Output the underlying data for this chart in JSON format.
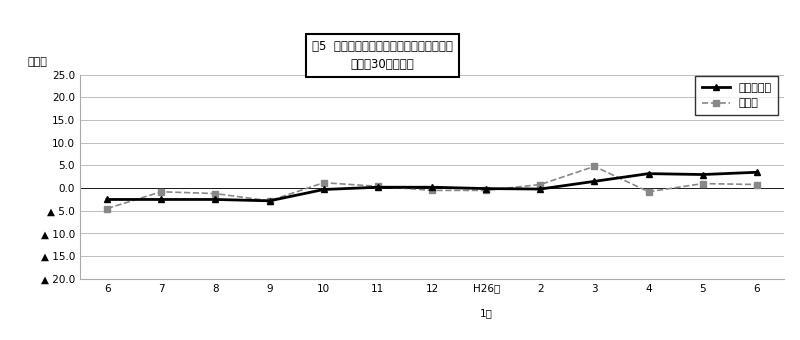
{
  "title_line1": "図5  常用労働者数の推移（対前年同月比）",
  "title_line2": "－規模30人以上－",
  "ylabel": "（％）",
  "series1_name": "調査産業計",
  "series2_name": "製造業",
  "x_positions": [
    0,
    1,
    2,
    3,
    4,
    5,
    6,
    7,
    8,
    9,
    10,
    11,
    12
  ],
  "x_tick_labels": [
    "6",
    "7",
    "8",
    "9",
    "10",
    "11",
    "12",
    "H26年",
    "2",
    "3",
    "4",
    "5",
    "6"
  ],
  "x_label_month": "1月",
  "ylim_min": -20.0,
  "ylim_max": 25.0,
  "ytick_vals": [
    25.0,
    20.0,
    15.0,
    10.0,
    5.0,
    0.0,
    -5.0,
    -10.0,
    -15.0,
    -20.0
  ],
  "ytick_labels": [
    "25.0",
    "20.0",
    "15.0",
    "10.0",
    "5.0",
    "0.0",
    "▲ 5.0",
    "▲ 10.0",
    "▲ 15.0",
    "▲ 20.0"
  ],
  "series1_values": [
    -2.5,
    -2.5,
    -2.5,
    -2.8,
    -0.3,
    0.2,
    0.2,
    -0.1,
    -0.2,
    1.5,
    3.2,
    3.0,
    3.5
  ],
  "series1_color": "#000000",
  "series2_values": [
    -4.5,
    -0.8,
    -1.2,
    -2.8,
    1.2,
    0.4,
    -0.5,
    -0.5,
    0.8,
    4.8,
    -0.8,
    1.0,
    0.8
  ],
  "series2_color": "#888888",
  "background_color": "#ffffff",
  "grid_color": "#bbbbbb",
  "fig_width": 8.0,
  "fig_height": 3.4,
  "dpi": 100
}
